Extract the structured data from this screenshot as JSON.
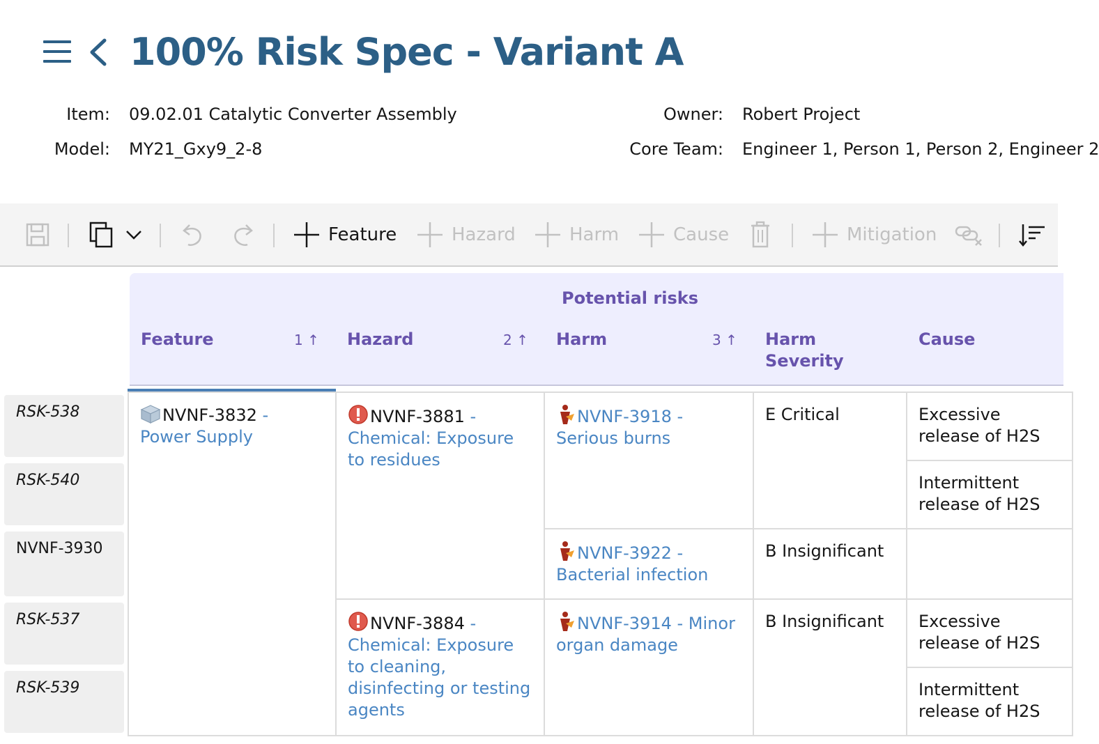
{
  "header": {
    "title": "100% Risk Spec - Variant A",
    "item_label": "Item:",
    "item_value": "09.02.01 Catalytic Converter Assembly",
    "model_label": "Model:",
    "model_value": "MY21_Gxy9_2-8",
    "owner_label": "Owner:",
    "owner_value": "Robert Project",
    "core_team_label": "Core Team:",
    "core_team_value": "Engineer 1, Person 1, Person 2, Engineer 2"
  },
  "toolbar": {
    "feature_label": "Feature",
    "hazard_label": "Hazard",
    "harm_label": "Harm",
    "cause_label": "Cause",
    "mitigation_label": "Mitigation"
  },
  "grid": {
    "group_title": "Potential risks",
    "columns": [
      {
        "label": "Feature",
        "sort": "1"
      },
      {
        "label": "Hazard",
        "sort": "2"
      },
      {
        "label": "Harm",
        "sort": "3"
      },
      {
        "label": "Harm Severity"
      },
      {
        "label": "Cause"
      }
    ],
    "rows": [
      "RSK-538",
      "RSK-540",
      "NVNF-3930",
      "RSK-537",
      "RSK-539"
    ],
    "feature": {
      "id": "NVNF-3832",
      "sep": " - ",
      "name": "Power Supply"
    },
    "hazards": [
      {
        "id": "NVNF-3881",
        "sep": " - ",
        "name": "Chemical: Exposure to residues"
      },
      {
        "id": "NVNF-3884",
        "sep": " - ",
        "name": "Chemical: Exposure to cleaning, disinfecting or testing agents"
      }
    ],
    "harms": [
      {
        "id": "NVNF-3918",
        "sep": " - ",
        "name": "Serious burns",
        "severity": "E Critical"
      },
      {
        "id": "NVNF-3922",
        "sep": " - ",
        "name": "Bacterial infection",
        "severity": "B Insignificant"
      },
      {
        "id": "NVNF-3914",
        "sep": " - ",
        "name": "Minor organ damage",
        "severity": "B Insignificant"
      }
    ],
    "causes": [
      "Excessive release of H2S",
      "Intermittent release of H2S",
      "",
      "Excessive release of H2S",
      "Intermittent release of H2S"
    ]
  },
  "colors": {
    "title": "#2c5f86",
    "header_bg": "#eeeefe",
    "header_text": "#6753ac",
    "link": "#4a86c3",
    "hazard_icon": "#e05a4e",
    "harm_icon": "#a52a1a"
  },
  "icons": {
    "menu": "menu-icon",
    "back": "chevron-left-icon",
    "save": "save-icon",
    "copy": "copy-icon",
    "undo": "undo-icon",
    "redo": "redo-icon",
    "add": "plus-icon",
    "delete": "trash-icon",
    "unlink": "unlink-icon",
    "sort": "sort-icon",
    "feature": "cube-icon",
    "hazard": "warning-icon",
    "harm": "body-icon"
  }
}
